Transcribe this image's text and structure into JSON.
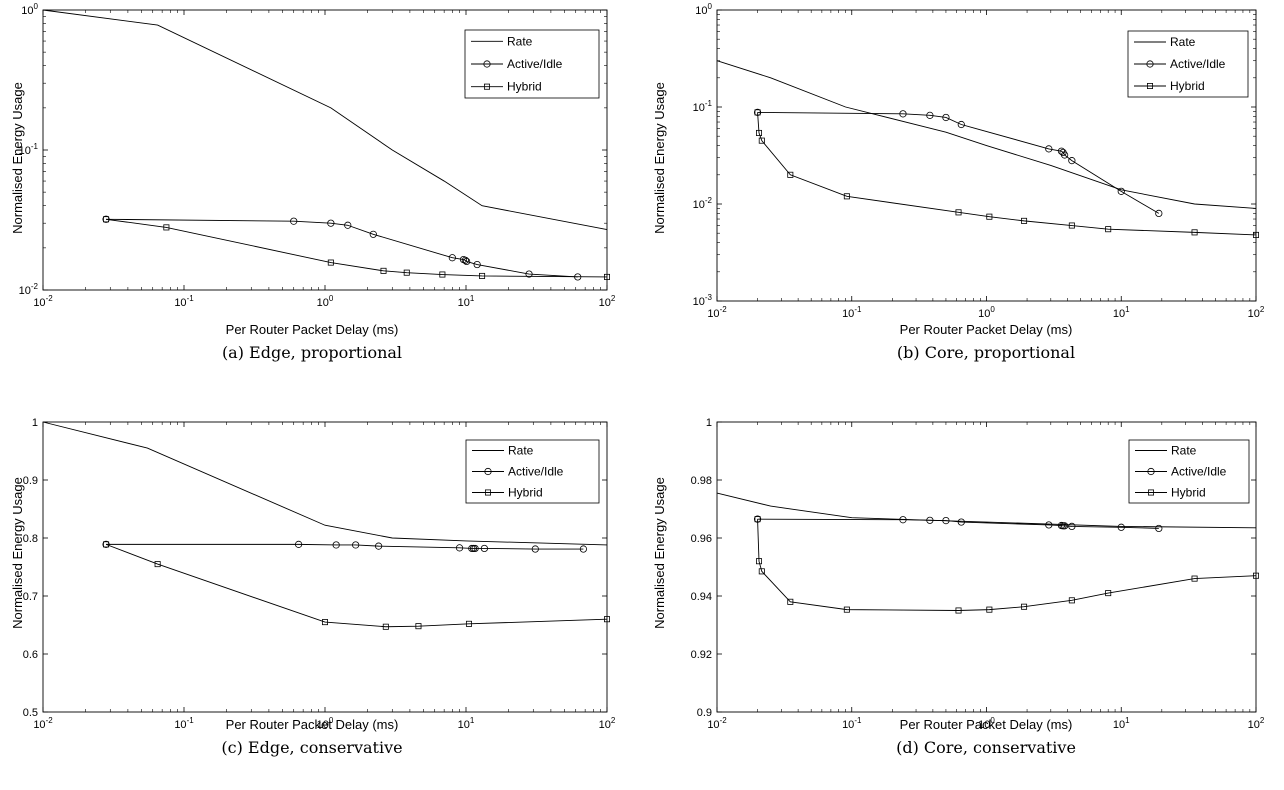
{
  "chart_data": [
    {
      "type": "line",
      "caption": "(a) Edge, proportional",
      "xlabel": "Per Router Packet Delay (ms)",
      "ylabel": "Normalised Energy Usage",
      "xscale": "log",
      "yscale": "log",
      "xlim": [
        0.01,
        100
      ],
      "ylim": [
        0.01,
        1
      ],
      "xticks": [
        0.01,
        0.1,
        1,
        10,
        100
      ],
      "yticks": [
        0.01,
        0.1,
        1
      ],
      "grid": false,
      "legend_position": "top-right",
      "series": [
        {
          "name": "Rate",
          "marker": "none",
          "points": [
            [
              0.01,
              1.0
            ],
            [
              0.065,
              0.78
            ],
            [
              1.1,
              0.2
            ],
            [
              3.0,
              0.1
            ],
            [
              7.0,
              0.06
            ],
            [
              13.0,
              0.04
            ],
            [
              100,
              0.027
            ]
          ]
        },
        {
          "name": "Active/Idle",
          "marker": "circle",
          "points": [
            [
              0.028,
              0.032
            ],
            [
              0.6,
              0.031
            ],
            [
              1.1,
              0.03
            ],
            [
              1.45,
              0.029
            ],
            [
              2.2,
              0.025
            ],
            [
              8.0,
              0.017
            ],
            [
              9.6,
              0.0165
            ],
            [
              9.9,
              0.0163
            ],
            [
              10.1,
              0.016
            ],
            [
              12.0,
              0.0152
            ],
            [
              28.0,
              0.013
            ],
            [
              62.0,
              0.0124
            ]
          ]
        },
        {
          "name": "Hybrid",
          "marker": "square",
          "points": [
            [
              0.028,
              0.032
            ],
            [
              0.075,
              0.028
            ],
            [
              1.1,
              0.0157
            ],
            [
              2.6,
              0.0137
            ],
            [
              3.8,
              0.0133
            ],
            [
              6.8,
              0.0129
            ],
            [
              13.0,
              0.0126
            ],
            [
              100,
              0.0124
            ]
          ]
        }
      ]
    },
    {
      "type": "line",
      "caption": "(b) Core, proportional",
      "xlabel": "Per Router Packet Delay (ms)",
      "ylabel": "Normalised Energy Usage",
      "xscale": "log",
      "yscale": "log",
      "xlim": [
        0.01,
        100
      ],
      "ylim": [
        0.001,
        1
      ],
      "xticks": [
        0.01,
        0.1,
        1,
        10,
        100
      ],
      "yticks": [
        0.001,
        0.01,
        0.1,
        1
      ],
      "grid": false,
      "legend_position": "top-right",
      "series": [
        {
          "name": "Rate",
          "marker": "none",
          "points": [
            [
              0.01,
              0.3
            ],
            [
              0.025,
              0.2
            ],
            [
              0.09,
              0.1
            ],
            [
              0.5,
              0.055
            ],
            [
              1.0,
              0.04
            ],
            [
              3.0,
              0.025
            ],
            [
              10.0,
              0.014
            ],
            [
              35.0,
              0.01
            ],
            [
              100,
              0.009
            ]
          ]
        },
        {
          "name": "Active/Idle",
          "marker": "circle",
          "points": [
            [
              0.02,
              0.088
            ],
            [
              0.24,
              0.085
            ],
            [
              0.38,
              0.082
            ],
            [
              0.5,
              0.078
            ],
            [
              0.65,
              0.066
            ],
            [
              2.9,
              0.037
            ],
            [
              3.6,
              0.035
            ],
            [
              3.7,
              0.034
            ],
            [
              3.8,
              0.032
            ],
            [
              4.3,
              0.028
            ],
            [
              10.0,
              0.0135
            ],
            [
              19.0,
              0.008
            ]
          ]
        },
        {
          "name": "Hybrid",
          "marker": "square",
          "points": [
            [
              0.02,
              0.088
            ],
            [
              0.0205,
              0.054
            ],
            [
              0.0215,
              0.045
            ],
            [
              0.035,
              0.02
            ],
            [
              0.092,
              0.012
            ],
            [
              0.62,
              0.0082
            ],
            [
              1.05,
              0.0074
            ],
            [
              1.9,
              0.0067
            ],
            [
              4.3,
              0.006
            ],
            [
              8.0,
              0.0055
            ],
            [
              35.0,
              0.0051
            ],
            [
              100,
              0.0048
            ]
          ]
        }
      ]
    },
    {
      "type": "line",
      "caption": "(c) Edge, conservative",
      "xlabel": "Per Router Packet Delay (ms)",
      "ylabel": "Normalised Energy Usage",
      "xscale": "log",
      "yscale": "linear",
      "xlim": [
        0.01,
        100
      ],
      "ylim": [
        0.5,
        1
      ],
      "xticks": [
        0.01,
        0.1,
        1,
        10,
        100
      ],
      "yticks": [
        0.5,
        0.6,
        0.7,
        0.8,
        0.9,
        1
      ],
      "grid": false,
      "legend_position": "top-right",
      "series": [
        {
          "name": "Rate",
          "marker": "none",
          "points": [
            [
              0.01,
              1.0
            ],
            [
              0.055,
              0.955
            ],
            [
              1.0,
              0.822
            ],
            [
              3.0,
              0.8
            ],
            [
              10.0,
              0.795
            ],
            [
              100,
              0.788
            ]
          ]
        },
        {
          "name": "Active/Idle",
          "marker": "circle",
          "points": [
            [
              0.028,
              0.789
            ],
            [
              0.65,
              0.789
            ],
            [
              1.2,
              0.788
            ],
            [
              1.65,
              0.788
            ],
            [
              2.4,
              0.786
            ],
            [
              9.0,
              0.783
            ],
            [
              11.0,
              0.782
            ],
            [
              11.3,
              0.782
            ],
            [
              11.6,
              0.782
            ],
            [
              13.5,
              0.782
            ],
            [
              31.0,
              0.781
            ],
            [
              68.0,
              0.781
            ]
          ]
        },
        {
          "name": "Hybrid",
          "marker": "square",
          "points": [
            [
              0.028,
              0.789
            ],
            [
              0.065,
              0.755
            ],
            [
              1.0,
              0.655
            ],
            [
              2.7,
              0.647
            ],
            [
              4.6,
              0.648
            ],
            [
              10.5,
              0.652
            ],
            [
              100,
              0.66
            ]
          ]
        }
      ]
    },
    {
      "type": "line",
      "caption": "(d) Core, conservative",
      "xlabel": "Per Router Packet Delay (ms)",
      "ylabel": "Normalised Energy Usage",
      "xscale": "log",
      "yscale": "linear",
      "xlim": [
        0.01,
        100
      ],
      "ylim": [
        0.9,
        1
      ],
      "xticks": [
        0.01,
        0.1,
        1,
        10,
        100
      ],
      "yticks": [
        0.9,
        0.92,
        0.94,
        0.96,
        0.98,
        1
      ],
      "grid": false,
      "legend_position": "top-right",
      "series": [
        {
          "name": "Rate",
          "marker": "none",
          "points": [
            [
              0.01,
              0.9755
            ],
            [
              0.025,
              0.971
            ],
            [
              0.1,
              0.967
            ],
            [
              1.0,
              0.9655
            ],
            [
              10.0,
              0.964
            ],
            [
              100,
              0.9635
            ]
          ]
        },
        {
          "name": "Active/Idle",
          "marker": "circle",
          "points": [
            [
              0.02,
              0.9665
            ],
            [
              0.24,
              0.9663
            ],
            [
              0.38,
              0.9661
            ],
            [
              0.5,
              0.966
            ],
            [
              0.65,
              0.9655
            ],
            [
              2.9,
              0.9645
            ],
            [
              3.6,
              0.9643
            ],
            [
              3.7,
              0.9642
            ],
            [
              3.8,
              0.9642
            ],
            [
              4.3,
              0.964
            ],
            [
              10.0,
              0.9637
            ],
            [
              19.0,
              0.9633
            ]
          ]
        },
        {
          "name": "Hybrid",
          "marker": "square",
          "points": [
            [
              0.02,
              0.9665
            ],
            [
              0.0205,
              0.952
            ],
            [
              0.0215,
              0.9485
            ],
            [
              0.035,
              0.938
            ],
            [
              0.092,
              0.9353
            ],
            [
              0.62,
              0.935
            ],
            [
              1.05,
              0.9353
            ],
            [
              1.9,
              0.9363
            ],
            [
              4.3,
              0.9385
            ],
            [
              8.0,
              0.941
            ],
            [
              35.0,
              0.946
            ],
            [
              100,
              0.947
            ]
          ]
        }
      ]
    }
  ]
}
